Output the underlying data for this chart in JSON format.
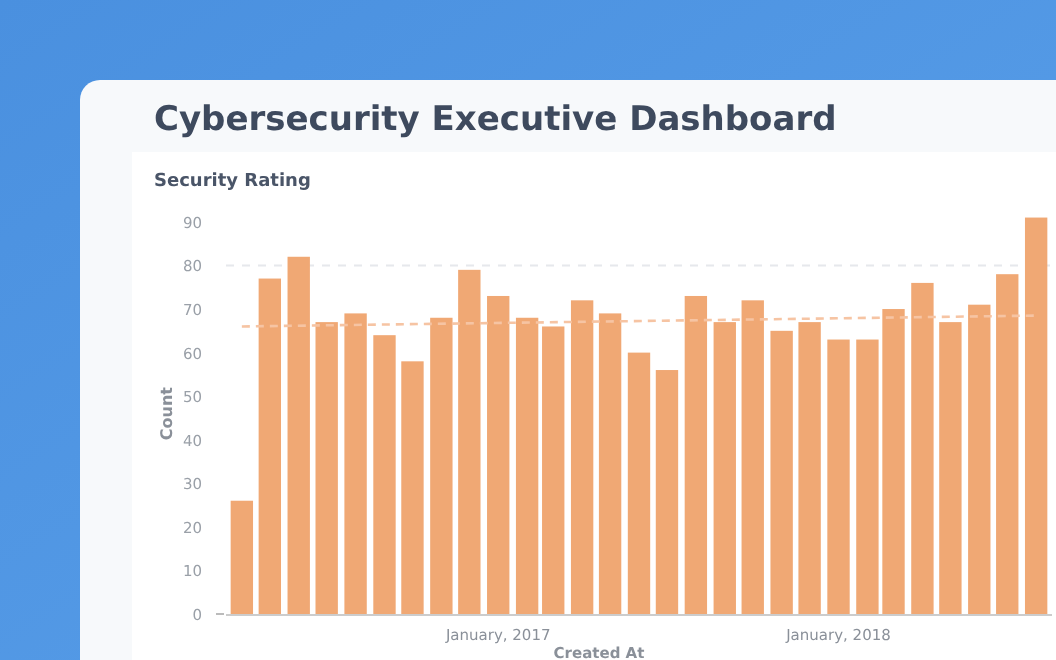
{
  "chart_data": {
    "type": "bar",
    "title": "Cybersecurity Executive Dashboard",
    "subtitle": "Security Rating",
    "xlabel": "Created At",
    "ylabel": "Count",
    "x": [
      "2016-04",
      "2016-05",
      "2016-06",
      "2016-07",
      "2016-08",
      "2016-09",
      "2016-10",
      "2016-11",
      "2016-12",
      "2017-01",
      "2017-02",
      "2017-03",
      "2017-04",
      "2017-05",
      "2017-06",
      "2017-07",
      "2017-08",
      "2017-09",
      "2017-10",
      "2017-11",
      "2017-12",
      "2018-01",
      "2018-02",
      "2018-03",
      "2018-04",
      "2018-05",
      "2018-06",
      "2018-07",
      "2018-08"
    ],
    "series": [
      {
        "color": "#f0a874",
        "values": [
          26,
          77,
          82,
          67,
          69,
          64,
          58,
          68,
          79,
          73,
          68,
          66,
          72,
          69,
          60,
          56,
          73,
          67,
          72,
          65,
          67,
          63,
          63,
          70,
          76,
          67,
          71,
          78,
          91
        ]
      },
      {
        "type": "line",
        "color": "#f6c4a3",
        "line_style": "dashed",
        "x": [
          "2016-04",
          "2018-08"
        ],
        "values": [
          66,
          68.5
        ]
      }
    ],
    "ref_lines": [
      {
        "axis": "y",
        "value": 80,
        "color": "#e6e8ec",
        "line_style": "dashed"
      }
    ],
    "xlim": [
      "2016-03-15",
      "2018-08-18"
    ],
    "xticks": [
      {
        "value": "2017-01",
        "label": "January, 2017"
      },
      {
        "value": "2018-01",
        "label": "January, 2018"
      }
    ],
    "ylim": [
      0,
      92
    ],
    "yticks": [
      0,
      10,
      20,
      30,
      40,
      50,
      60,
      70,
      80,
      90
    ],
    "grid": false
  }
}
